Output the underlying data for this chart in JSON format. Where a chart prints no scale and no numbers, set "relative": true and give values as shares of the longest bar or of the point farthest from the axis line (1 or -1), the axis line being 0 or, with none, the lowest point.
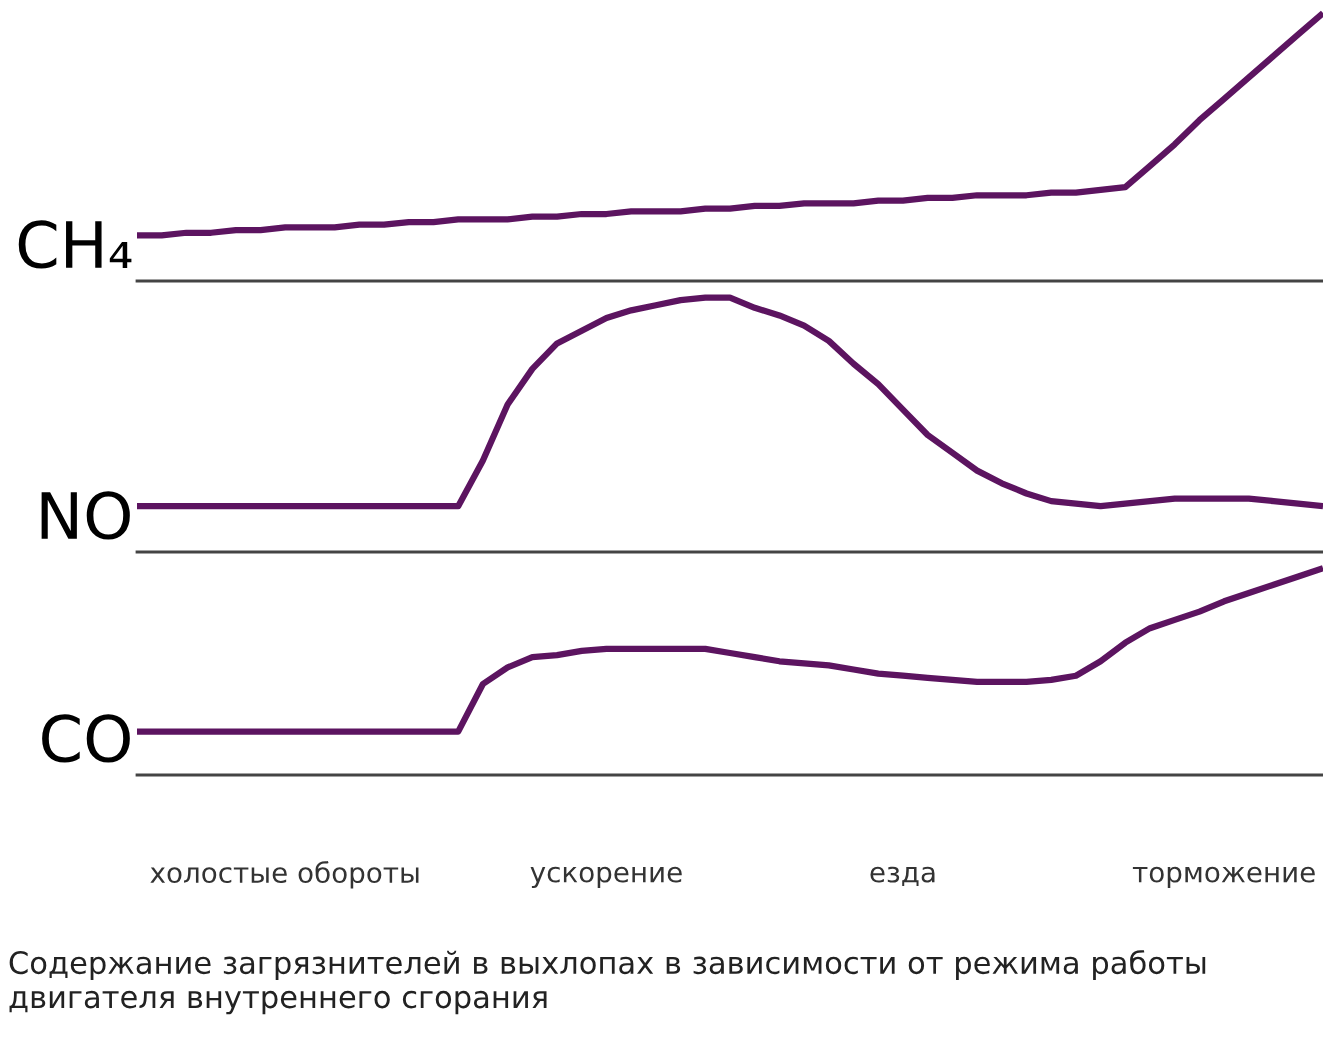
{
  "chart_data": [
    {
      "type": "line",
      "relative": true,
      "ylabel": "CH₄",
      "marker": "none",
      "line_style": "solid",
      "categories": [
        null,
        null,
        null,
        null,
        null,
        null,
        null,
        null,
        null,
        null,
        null,
        null,
        null,
        null,
        null,
        null,
        null,
        null,
        null,
        null,
        null,
        null,
        null,
        null,
        null,
        null,
        null,
        null,
        null,
        null,
        null,
        null,
        null,
        null,
        null,
        null,
        null,
        null,
        null,
        null,
        null,
        null,
        null,
        null,
        null,
        null,
        null,
        null,
        null
      ],
      "series": [
        {
          "color": "#5c1460",
          "values": [
            0.17,
            0.17,
            0.18,
            0.18,
            0.19,
            0.19,
            0.2,
            0.2,
            0.2,
            0.21,
            0.21,
            0.22,
            0.22,
            0.23,
            0.23,
            0.23,
            0.24,
            0.24,
            0.25,
            0.25,
            0.26,
            0.26,
            0.26,
            0.27,
            0.27,
            0.28,
            0.28,
            0.29,
            0.29,
            0.29,
            0.3,
            0.3,
            0.31,
            0.31,
            0.32,
            0.32,
            0.32,
            0.33,
            0.33,
            0.34,
            0.35,
            0.43,
            0.51,
            0.6,
            0.68,
            0.76,
            0.84,
            0.92,
            1.0
          ]
        }
      ]
    },
    {
      "type": "line",
      "relative": true,
      "ylabel": "NO",
      "marker": "none",
      "line_style": "solid",
      "categories": [
        null,
        null,
        null,
        null,
        null,
        null,
        null,
        null,
        null,
        null,
        null,
        null,
        null,
        null,
        null,
        null,
        null,
        null,
        null,
        null,
        null,
        null,
        null,
        null,
        null,
        null,
        null,
        null,
        null,
        null,
        null,
        null,
        null,
        null,
        null,
        null,
        null,
        null,
        null,
        null,
        null,
        null,
        null,
        null,
        null,
        null,
        null,
        null,
        null
      ],
      "series": [
        {
          "color": "#5c1460",
          "values": [
            0.18,
            0.18,
            0.18,
            0.18,
            0.18,
            0.18,
            0.18,
            0.18,
            0.18,
            0.18,
            0.18,
            0.18,
            0.18,
            0.18,
            0.36,
            0.58,
            0.72,
            0.82,
            0.87,
            0.92,
            0.95,
            0.97,
            0.99,
            1.0,
            1.0,
            0.96,
            0.93,
            0.89,
            0.83,
            0.74,
            0.66,
            0.56,
            0.46,
            0.39,
            0.32,
            0.27,
            0.23,
            0.2,
            0.19,
            0.18,
            0.19,
            0.2,
            0.21,
            0.21,
            0.21,
            0.21,
            0.2,
            0.19,
            0.18
          ]
        }
      ]
    },
    {
      "type": "line",
      "relative": true,
      "ylabel": "CO",
      "marker": "none",
      "line_style": "solid",
      "categories": [
        null,
        null,
        null,
        null,
        null,
        null,
        "холостые обороты",
        null,
        null,
        null,
        null,
        null,
        null,
        null,
        null,
        null,
        null,
        null,
        null,
        "ускорение",
        null,
        null,
        null,
        null,
        null,
        null,
        null,
        null,
        null,
        null,
        null,
        "езда",
        null,
        null,
        null,
        null,
        null,
        null,
        null,
        null,
        null,
        null,
        null,
        null,
        "торможение",
        null,
        null,
        null,
        null
      ],
      "annotations": [
        "Содержание загрязнителей в выхлопах в зависимости от режима работы двигателя внутреннего сгорания"
      ],
      "series": [
        {
          "color": "#5c1460",
          "values": [
            0.21,
            0.21,
            0.21,
            0.21,
            0.21,
            0.21,
            0.21,
            0.21,
            0.21,
            0.21,
            0.21,
            0.21,
            0.21,
            0.21,
            0.44,
            0.52,
            0.57,
            0.58,
            0.6,
            0.61,
            0.61,
            0.61,
            0.61,
            0.61,
            0.59,
            0.57,
            0.55,
            0.54,
            0.53,
            0.51,
            0.49,
            0.48,
            0.47,
            0.46,
            0.45,
            0.45,
            0.45,
            0.46,
            0.48,
            0.55,
            0.64,
            0.71,
            0.75,
            0.79,
            0.84,
            0.88,
            0.92,
            0.96,
            1.0
          ]
        }
      ]
    }
  ]
}
